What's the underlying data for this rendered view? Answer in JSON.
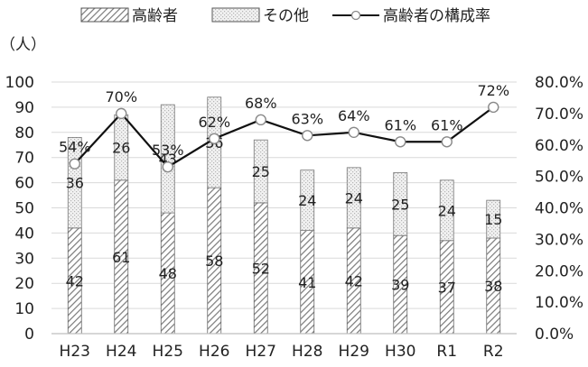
{
  "chart_data": {
    "type": "bar",
    "stacked": true,
    "categories": [
      "H23",
      "H24",
      "H25",
      "H26",
      "H27",
      "H28",
      "H29",
      "H30",
      "R1",
      "R2"
    ],
    "series": [
      {
        "name": "高齢者",
        "kind": "bar",
        "values": [
          42,
          61,
          48,
          58,
          52,
          41,
          42,
          39,
          37,
          38
        ]
      },
      {
        "name": "その他",
        "kind": "bar",
        "values": [
          36,
          26,
          43,
          36,
          25,
          24,
          24,
          25,
          24,
          15
        ]
      },
      {
        "name": "高齢者の構成率",
        "kind": "line",
        "axis": "right",
        "values": [
          54,
          70,
          53,
          62,
          68,
          63,
          64,
          61,
          61,
          72
        ]
      }
    ],
    "bar_labels": {
      "elderly": [
        "42",
        "61",
        "48",
        "58",
        "52",
        "41",
        "42",
        "39",
        "37",
        "38"
      ],
      "other": [
        "36",
        "26",
        "43",
        "36",
        "25",
        "24",
        "24",
        "25",
        "24",
        "15"
      ]
    },
    "rate_labels": [
      "54%",
      "70%",
      "53%",
      "62%",
      "68%",
      "63%",
      "64%",
      "61%",
      "61%",
      "72%"
    ],
    "ylabel": "（人）",
    "ylim": [
      0,
      100
    ],
    "y_ticks": [
      "0",
      "10",
      "20",
      "30",
      "40",
      "50",
      "60",
      "70",
      "80",
      "90",
      "100"
    ],
    "y2lim": [
      0,
      80
    ],
    "y2_ticks": [
      "0.0%",
      "10.0%",
      "20.0%",
      "30.0%",
      "40.0%",
      "50.0%",
      "60.0%",
      "70.0%",
      "80.0%"
    ],
    "grid": true,
    "legend_position": "top",
    "legend": [
      "高齢者",
      "その他",
      "高齢者の構成率"
    ],
    "colors": {
      "elderly_hatch": "#7a7a7a",
      "elderly_bg": "#ffffff",
      "other_dots": "#b5b5b5",
      "other_bg": "#f1f1f1",
      "line": "#111111",
      "marker_fill": "#ffffff",
      "grid": "#d9d9d9"
    }
  }
}
